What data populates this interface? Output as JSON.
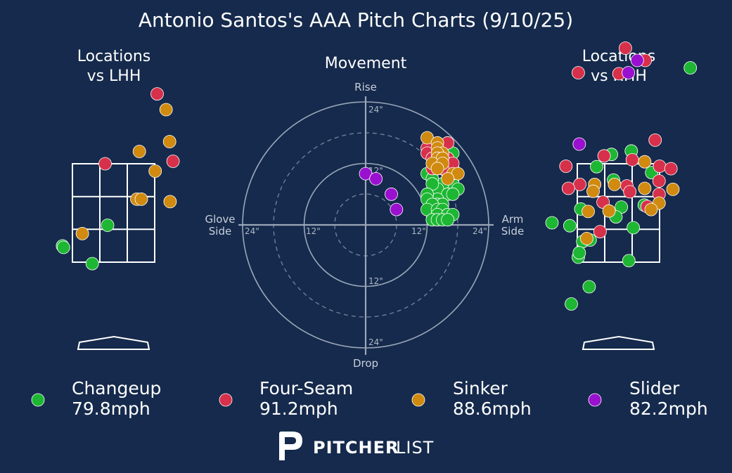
{
  "title": "Antonio Santos's AAA Pitch Charts (9/10/25)",
  "colors": {
    "background": "#152a4c",
    "Changeup": "#1db733",
    "Four-Seam": "#d7304b",
    "Sinker": "#d08a10",
    "Slider": "#9a10cf"
  },
  "panels": {
    "lhh_title_1": "Locations",
    "lhh_title_2": "vs LHH",
    "movement_title": "Movement",
    "rhh_title_1": "Locations",
    "rhh_title_2": "vs RHH"
  },
  "movement_labels": {
    "rise": "Rise",
    "drop": "Drop",
    "glove_1": "Glove",
    "glove_2": "Side",
    "arm_1": "Arm",
    "arm_2": "Side"
  },
  "ring_labels": {
    "top24": "24\"",
    "top12": "12\"",
    "bottom12": "12\"",
    "bottom24": "24\"",
    "left24": "24\"",
    "left12": "12\"",
    "right12": "12\"",
    "right24": "24\""
  },
  "legend": [
    {
      "name": "Changeup",
      "speed": "79.8mph",
      "color": "#1db733"
    },
    {
      "name": "Four-Seam",
      "speed": "91.2mph",
      "color": "#d7304b"
    },
    {
      "name": "Sinker",
      "speed": "88.6mph",
      "color": "#d08a10"
    },
    {
      "name": "Slider",
      "speed": "82.2mph",
      "color": "#9a10cf"
    }
  ],
  "brand": {
    "bold": "PITCHER",
    "light": "LIST"
  },
  "chart_data": [
    {
      "type": "scatter",
      "name": "movement",
      "units": "inches",
      "xlim": [
        -24,
        24
      ],
      "ylim": [
        -24,
        24
      ],
      "rings": [
        6,
        12,
        18,
        24
      ],
      "series": [
        {
          "name": "Changeup",
          "points": [
            [
              17,
              14
            ],
            [
              16,
              12
            ],
            [
              17,
              11
            ],
            [
              16,
              10
            ],
            [
              17,
              9
            ],
            [
              16,
              8
            ],
            [
              17,
              8
            ],
            [
              15,
              8
            ],
            [
              14,
              7
            ],
            [
              18,
              7
            ],
            [
              16,
              6
            ],
            [
              17,
              6
            ],
            [
              14,
              5
            ],
            [
              12,
              10
            ],
            [
              13,
              9
            ],
            [
              13,
              8
            ],
            [
              12,
              6
            ],
            [
              12,
              5
            ],
            [
              14,
              4
            ],
            [
              15,
              4
            ],
            [
              13,
              4
            ],
            [
              12,
              3
            ],
            [
              14,
              3
            ],
            [
              15,
              3
            ],
            [
              14,
              2
            ],
            [
              16,
              2
            ],
            [
              17,
              2
            ],
            [
              13,
              1
            ],
            [
              14,
              1
            ],
            [
              15,
              1
            ],
            [
              16,
              1
            ]
          ]
        },
        {
          "name": "Four-Seam",
          "points": [
            [
              16,
              16
            ],
            [
              12,
              15
            ],
            [
              12,
              14
            ],
            [
              13,
              13
            ],
            [
              14,
              13
            ],
            [
              15,
              13
            ],
            [
              16,
              13
            ],
            [
              15,
              12
            ],
            [
              16,
              12
            ],
            [
              17,
              12
            ],
            [
              14,
              11
            ],
            [
              15,
              11
            ],
            [
              13,
              11
            ]
          ]
        },
        {
          "name": "Sinker",
          "points": [
            [
              12,
              17
            ],
            [
              14,
              16
            ],
            [
              14,
              15
            ],
            [
              15,
              14
            ],
            [
              14,
              14
            ],
            [
              14,
              13
            ],
            [
              15,
              13
            ],
            [
              13,
              12
            ],
            [
              15,
              12
            ],
            [
              14,
              11
            ],
            [
              17,
              10
            ],
            [
              18,
              10
            ],
            [
              16,
              9
            ]
          ]
        },
        {
          "name": "Slider",
          "points": [
            [
              0,
              10
            ],
            [
              2,
              9
            ],
            [
              5,
              6
            ],
            [
              6,
              3
            ]
          ]
        }
      ]
    },
    {
      "type": "scatter",
      "name": "locations_vs_lhh",
      "units": "feet",
      "xlim": [
        -2.4,
        2.4
      ],
      "ylim": [
        0,
        6
      ],
      "zone": {
        "x": [
          -0.83,
          0.83
        ],
        "y": [
          1.5,
          3.5
        ]
      },
      "series": [
        {
          "name": "Changeup",
          "points": [
            [
              -0.12,
              1.75
            ],
            [
              -1.03,
              1.33
            ],
            [
              -1.01,
              1.3
            ],
            [
              -0.43,
              0.97
            ]
          ]
        },
        {
          "name": "Four-Seam",
          "points": [
            [
              0.88,
              4.42
            ],
            [
              -0.17,
              3.0
            ],
            [
              1.2,
              3.05
            ]
          ]
        },
        {
          "name": "Sinker",
          "points": [
            [
              1.06,
              4.1
            ],
            [
              0.52,
              3.25
            ],
            [
              1.13,
              3.45
            ],
            [
              0.84,
              2.85
            ],
            [
              0.47,
              2.28
            ],
            [
              0.56,
              2.28
            ],
            [
              1.14,
              2.23
            ],
            [
              -0.63,
              1.58
            ]
          ]
        },
        {
          "name": "Slider",
          "points": []
        }
      ]
    },
    {
      "type": "scatter",
      "name": "locations_vs_rhh",
      "units": "feet",
      "xlim": [
        -2.4,
        2.4
      ],
      "ylim": [
        0,
        6
      ],
      "zone": {
        "x": [
          -0.83,
          0.83
        ],
        "y": [
          1.5,
          3.5
        ]
      },
      "series": [
        {
          "name": "Changeup",
          "points": [
            [
              1.45,
              4.95
            ],
            [
              -0.14,
              3.19
            ],
            [
              0.26,
              3.26
            ],
            [
              0.67,
              2.82
            ],
            [
              -0.44,
              2.94
            ],
            [
              -0.98,
              1.74
            ],
            [
              -0.76,
              2.08
            ],
            [
              -0.1,
              2.67
            ],
            [
              0.06,
              2.12
            ],
            [
              -1.34,
              1.8
            ],
            [
              0.52,
              2.16
            ],
            [
              -0.05,
              1.92
            ],
            [
              0.3,
              1.7
            ],
            [
              -0.72,
              1.42
            ],
            [
              -0.57,
              1.45
            ],
            [
              -0.81,
              1.1
            ],
            [
              -0.79,
              1.19
            ],
            [
              0.21,
              1.03
            ],
            [
              -0.59,
              0.5
            ],
            [
              -0.95,
              0.15
            ]
          ]
        },
        {
          "name": "Four-Seam",
          "points": [
            [
              0.14,
              5.35
            ],
            [
              0.54,
              5.1
            ],
            [
              -0.81,
              4.85
            ],
            [
              0.01,
              4.83
            ],
            [
              0.74,
              3.48
            ],
            [
              -0.29,
              3.16
            ],
            [
              0.28,
              3.08
            ],
            [
              0.83,
              2.95
            ],
            [
              1.06,
              2.9
            ],
            [
              -1.06,
              2.95
            ],
            [
              -0.78,
              2.58
            ],
            [
              0.17,
              2.55
            ],
            [
              0.82,
              2.65
            ],
            [
              0.23,
              2.43
            ],
            [
              0.82,
              2.38
            ],
            [
              -1.01,
              2.5
            ],
            [
              -0.31,
              2.22
            ],
            [
              0.58,
              2.13
            ],
            [
              -0.37,
              1.62
            ]
          ]
        },
        {
          "name": "Sinker",
          "points": [
            [
              0.53,
              3.04
            ],
            [
              -0.08,
              2.58
            ],
            [
              -0.48,
              2.58
            ],
            [
              1.1,
              2.48
            ],
            [
              0.53,
              2.5
            ],
            [
              0.82,
              2.2
            ],
            [
              0.66,
              2.07
            ],
            [
              -0.19,
              2.04
            ],
            [
              -0.51,
              2.44
            ],
            [
              -0.61,
              2.03
            ],
            [
              -0.64,
              1.48
            ]
          ]
        },
        {
          "name": "Slider",
          "points": [
            [
              0.38,
              5.1
            ],
            [
              0.2,
              4.85
            ],
            [
              -0.79,
              3.4
            ]
          ]
        }
      ]
    }
  ]
}
